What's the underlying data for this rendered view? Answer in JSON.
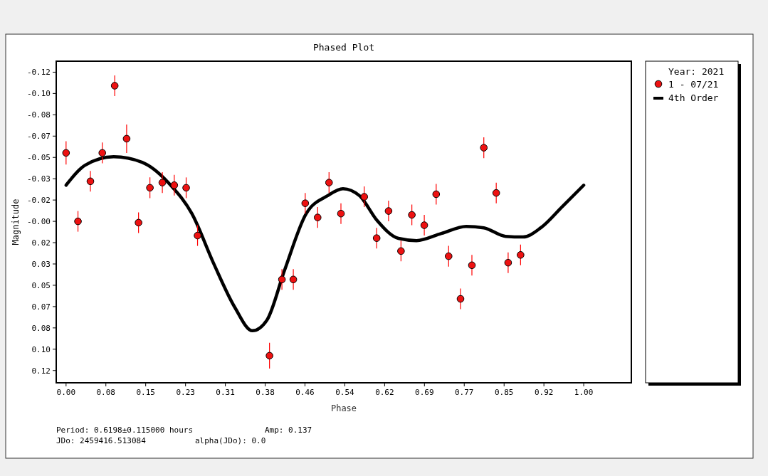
{
  "chart_data": {
    "type": "scatter",
    "title": "Phased Plot",
    "xlabel": "Phase",
    "ylabel": "Magnitude",
    "legend_title": "Year: 2021",
    "legend": "right",
    "grid": false,
    "xlim": [
      -0.019,
      1.092
    ],
    "ylim": [
      0.125,
      -0.124
    ],
    "xticks": [
      {
        "value": 0,
        "label": "0.00"
      },
      {
        "value": 0.0769,
        "label": "0.08"
      },
      {
        "value": 0.1538,
        "label": "0.15"
      },
      {
        "value": 0.2308,
        "label": "0.23"
      },
      {
        "value": 0.3077,
        "label": "0.31"
      },
      {
        "value": 0.3846,
        "label": "0.38"
      },
      {
        "value": 0.4615,
        "label": "0.46"
      },
      {
        "value": 0.5385,
        "label": "0.54"
      },
      {
        "value": 0.6154,
        "label": "0.62"
      },
      {
        "value": 0.6923,
        "label": "0.69"
      },
      {
        "value": 0.7692,
        "label": "0.77"
      },
      {
        "value": 0.8462,
        "label": "0.85"
      },
      {
        "value": 0.9231,
        "label": "0.92"
      },
      {
        "value": 1,
        "label": "1.00"
      }
    ],
    "yticks": [
      {
        "value": -0.1155,
        "label": "-0.12"
      },
      {
        "value": -0.099,
        "label": "-0.10"
      },
      {
        "value": -0.0825,
        "label": "-0.08"
      },
      {
        "value": -0.066,
        "label": "-0.07"
      },
      {
        "value": -0.0495,
        "label": "-0.05"
      },
      {
        "value": -0.033,
        "label": "-0.03"
      },
      {
        "value": -0.0165,
        "label": "-0.02"
      },
      {
        "value": 0,
        "label": "-0.00"
      },
      {
        "value": 0.0165,
        "label": "0.02"
      },
      {
        "value": 0.033,
        "label": "0.03"
      },
      {
        "value": 0.0495,
        "label": "0.05"
      },
      {
        "value": 0.066,
        "label": "0.07"
      },
      {
        "value": 0.0825,
        "label": "0.08"
      },
      {
        "value": 0.099,
        "label": "0.10"
      },
      {
        "value": 0.1155,
        "label": "0.12"
      }
    ],
    "series": [
      {
        "name": "1 - 07/21",
        "marker": "circle",
        "color": "#ee1111",
        "x": [
          0,
          0.023,
          0.047,
          0.07,
          0.094,
          0.117,
          0.14,
          0.162,
          0.186,
          0.209,
          0.232,
          0.254,
          0.393,
          0.417,
          0.439,
          0.462,
          0.486,
          0.508,
          0.531,
          0.576,
          0.6,
          0.623,
          0.647,
          0.668,
          0.692,
          0.715,
          0.739,
          0.762,
          0.784,
          0.807,
          0.831,
          0.854,
          0.878
        ],
        "values": [
          -0.053,
          0,
          -0.031,
          -0.053,
          -0.105,
          -0.064,
          0.001,
          -0.026,
          -0.03,
          -0.028,
          -0.026,
          0.011,
          0.104,
          0.045,
          0.045,
          -0.014,
          -0.003,
          -0.03,
          -0.006,
          -0.019,
          0.013,
          -0.008,
          0.023,
          -0.005,
          0.003,
          -0.021,
          0.027,
          0.06,
          0.034,
          -0.057,
          -0.022,
          0.032,
          0.026
        ],
        "errors": [
          0.009,
          0.008,
          0.008,
          0.008,
          0.008,
          0.011,
          0.008,
          0.008,
          0.008,
          0.008,
          0.008,
          0.008,
          0.01,
          0.008,
          0.008,
          0.008,
          0.008,
          0.008,
          0.008,
          0.008,
          0.008,
          0.008,
          0.008,
          0.008,
          0.008,
          0.008,
          0.008,
          0.008,
          0.008,
          0.008,
          0.008,
          0.008,
          0.008
        ]
      },
      {
        "name": "4th Order",
        "type": "line",
        "marker": "none",
        "line_style": "solid",
        "color": "#000000",
        "x": [
          0,
          0.037,
          0.092,
          0.147,
          0.202,
          0.243,
          0.285,
          0.326,
          0.36,
          0.388,
          0.422,
          0.464,
          0.505,
          0.535,
          0.567,
          0.601,
          0.642,
          0.677,
          0.725,
          0.773,
          0.807,
          0.849,
          0.883,
          0.917,
          0.959,
          1
        ],
        "values": [
          -0.028,
          -0.0435,
          -0.05,
          -0.0457,
          -0.028,
          -0.006,
          0.0325,
          0.0666,
          0.0847,
          0.0765,
          0.038,
          -0.006,
          -0.0198,
          -0.0253,
          -0.0198,
          -0.0006,
          0.0132,
          0.0149,
          0.0094,
          0.0039,
          0.005,
          0.0116,
          0.0121,
          0.005,
          -0.0116,
          -0.028
        ]
      }
    ],
    "annotations": [
      "Period: 0.6198±0.115000 hours",
      "Amp: 0.137",
      "JDo: 2459416.513084",
      "alpha(JDo): 0.0"
    ]
  }
}
